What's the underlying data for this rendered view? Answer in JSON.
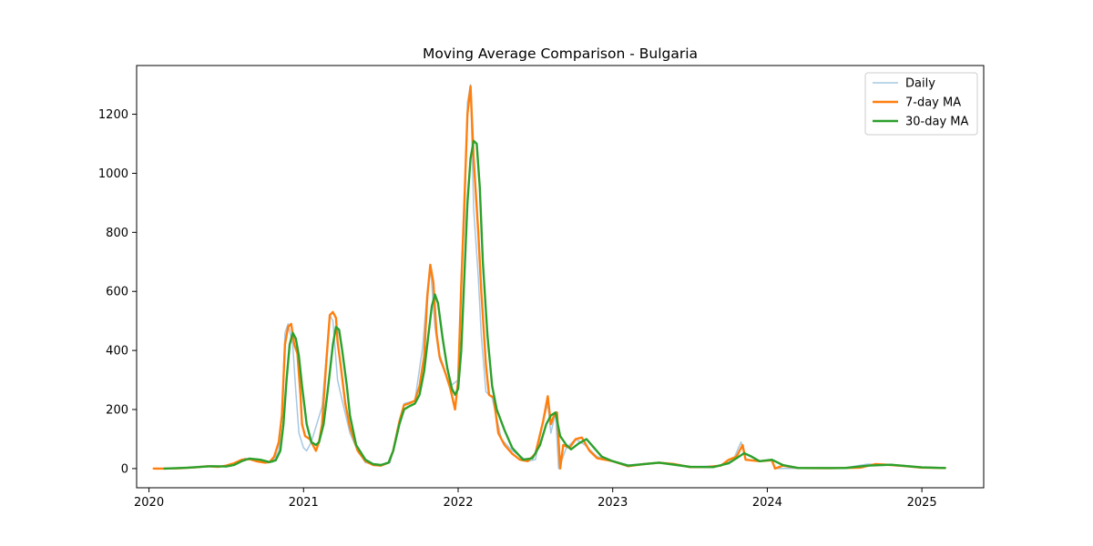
{
  "chart_data": {
    "type": "line",
    "title": "Moving Average Comparison - Bulgaria",
    "xlabel": "",
    "ylabel": "",
    "xlim": [
      2019.92,
      2025.4
    ],
    "ylim": [
      -65,
      1365
    ],
    "x_ticks": [
      2020,
      2021,
      2022,
      2023,
      2024,
      2025
    ],
    "y_ticks": [
      0,
      200,
      400,
      600,
      800,
      1000,
      1200
    ],
    "grid": false,
    "legend_placement": "top-right",
    "series": [
      {
        "name": "Daily",
        "color": "#a6c8e3",
        "style": "thin",
        "points": [
          [
            2020.05,
            0
          ],
          [
            2020.25,
            2
          ],
          [
            2020.4,
            8
          ],
          [
            2020.5,
            6
          ],
          [
            2020.55,
            15
          ],
          [
            2020.62,
            35
          ],
          [
            2020.7,
            25
          ],
          [
            2020.8,
            22
          ],
          [
            2020.84,
            60
          ],
          [
            2020.86,
            180
          ],
          [
            2020.87,
            320
          ],
          [
            2020.88,
            460
          ],
          [
            2020.9,
            490
          ],
          [
            2020.93,
            420
          ],
          [
            2020.95,
            260
          ],
          [
            2020.97,
            120
          ],
          [
            2021.0,
            70
          ],
          [
            2021.02,
            60
          ],
          [
            2021.05,
            90
          ],
          [
            2021.12,
            210
          ],
          [
            2021.17,
            520
          ],
          [
            2021.19,
            500
          ],
          [
            2021.22,
            300
          ],
          [
            2021.25,
            230
          ],
          [
            2021.3,
            120
          ],
          [
            2021.35,
            60
          ],
          [
            2021.4,
            20
          ],
          [
            2021.5,
            12
          ],
          [
            2021.56,
            20
          ],
          [
            2021.62,
            150
          ],
          [
            2021.65,
            220
          ],
          [
            2021.72,
            230
          ],
          [
            2021.77,
            410
          ],
          [
            2021.8,
            600
          ],
          [
            2021.82,
            690
          ],
          [
            2021.85,
            480
          ],
          [
            2021.88,
            370
          ],
          [
            2021.95,
            280
          ],
          [
            2022.0,
            300
          ],
          [
            2022.02,
            650
          ],
          [
            2022.04,
            830
          ],
          [
            2022.06,
            1240
          ],
          [
            2022.08,
            1300
          ],
          [
            2022.1,
            880
          ],
          [
            2022.13,
            650
          ],
          [
            2022.15,
            450
          ],
          [
            2022.18,
            260
          ],
          [
            2022.22,
            240
          ],
          [
            2022.28,
            100
          ],
          [
            2022.35,
            60
          ],
          [
            2022.45,
            25
          ],
          [
            2022.5,
            30
          ],
          [
            2022.55,
            160
          ],
          [
            2022.58,
            220
          ],
          [
            2022.6,
            120
          ],
          [
            2022.63,
            190
          ],
          [
            2022.65,
            0
          ],
          [
            2022.7,
            70
          ],
          [
            2022.76,
            100
          ],
          [
            2022.82,
            80
          ],
          [
            2022.9,
            40
          ],
          [
            2023.0,
            25
          ],
          [
            2023.1,
            12
          ],
          [
            2023.3,
            20
          ],
          [
            2023.5,
            6
          ],
          [
            2023.7,
            10
          ],
          [
            2023.78,
            30
          ],
          [
            2023.83,
            90
          ],
          [
            2023.86,
            30
          ],
          [
            2023.95,
            25
          ],
          [
            2024.03,
            30
          ],
          [
            2024.05,
            0
          ],
          [
            2024.2,
            1
          ],
          [
            2024.5,
            2
          ],
          [
            2024.65,
            15
          ],
          [
            2024.8,
            12
          ],
          [
            2025.0,
            4
          ],
          [
            2025.15,
            2
          ]
        ]
      },
      {
        "name": "7-day MA",
        "color": "#ff7f0e",
        "style": "medium",
        "points": [
          [
            2020.03,
            0
          ],
          [
            2020.1,
            0
          ],
          [
            2020.2,
            1
          ],
          [
            2020.3,
            4
          ],
          [
            2020.38,
            8
          ],
          [
            2020.45,
            6
          ],
          [
            2020.5,
            10
          ],
          [
            2020.55,
            18
          ],
          [
            2020.6,
            30
          ],
          [
            2020.65,
            32
          ],
          [
            2020.7,
            24
          ],
          [
            2020.75,
            20
          ],
          [
            2020.78,
            22
          ],
          [
            2020.81,
            40
          ],
          [
            2020.84,
            90
          ],
          [
            2020.86,
            180
          ],
          [
            2020.87,
            300
          ],
          [
            2020.88,
            420
          ],
          [
            2020.9,
            480
          ],
          [
            2020.92,
            490
          ],
          [
            2020.94,
            420
          ],
          [
            2020.96,
            390
          ],
          [
            2020.98,
            250
          ],
          [
            2020.99,
            150
          ],
          [
            2021.01,
            110
          ],
          [
            2021.04,
            100
          ],
          [
            2021.06,
            80
          ],
          [
            2021.08,
            60
          ],
          [
            2021.1,
            90
          ],
          [
            2021.12,
            150
          ],
          [
            2021.15,
            380
          ],
          [
            2021.17,
            520
          ],
          [
            2021.19,
            530
          ],
          [
            2021.21,
            510
          ],
          [
            2021.22,
            430
          ],
          [
            2021.24,
            350
          ],
          [
            2021.27,
            220
          ],
          [
            2021.3,
            140
          ],
          [
            2021.35,
            60
          ],
          [
            2021.4,
            25
          ],
          [
            2021.45,
            12
          ],
          [
            2021.5,
            10
          ],
          [
            2021.55,
            20
          ],
          [
            2021.58,
            60
          ],
          [
            2021.62,
            160
          ],
          [
            2021.65,
            215
          ],
          [
            2021.68,
            220
          ],
          [
            2021.72,
            230
          ],
          [
            2021.75,
            280
          ],
          [
            2021.78,
            380
          ],
          [
            2021.8,
            580
          ],
          [
            2021.82,
            690
          ],
          [
            2021.84,
            630
          ],
          [
            2021.86,
            460
          ],
          [
            2021.88,
            380
          ],
          [
            2021.92,
            320
          ],
          [
            2021.95,
            270
          ],
          [
            2021.98,
            200
          ],
          [
            2022.0,
            300
          ],
          [
            2022.02,
            620
          ],
          [
            2022.04,
            900
          ],
          [
            2022.06,
            1200
          ],
          [
            2022.08,
            1295
          ],
          [
            2022.1,
            1050
          ],
          [
            2022.13,
            800
          ],
          [
            2022.15,
            600
          ],
          [
            2022.18,
            350
          ],
          [
            2022.2,
            250
          ],
          [
            2022.23,
            240
          ],
          [
            2022.26,
            120
          ],
          [
            2022.3,
            80
          ],
          [
            2022.35,
            50
          ],
          [
            2022.4,
            30
          ],
          [
            2022.45,
            25
          ],
          [
            2022.5,
            50
          ],
          [
            2022.55,
            160
          ],
          [
            2022.58,
            245
          ],
          [
            2022.6,
            150
          ],
          [
            2022.62,
            180
          ],
          [
            2022.64,
            190
          ],
          [
            2022.66,
            0
          ],
          [
            2022.68,
            80
          ],
          [
            2022.72,
            70
          ],
          [
            2022.76,
            100
          ],
          [
            2022.8,
            105
          ],
          [
            2022.85,
            60
          ],
          [
            2022.9,
            35
          ],
          [
            2023.0,
            25
          ],
          [
            2023.1,
            8
          ],
          [
            2023.2,
            15
          ],
          [
            2023.3,
            20
          ],
          [
            2023.4,
            15
          ],
          [
            2023.5,
            5
          ],
          [
            2023.6,
            5
          ],
          [
            2023.7,
            10
          ],
          [
            2023.75,
            30
          ],
          [
            2023.8,
            40
          ],
          [
            2023.84,
            80
          ],
          [
            2023.86,
            30
          ],
          [
            2023.95,
            25
          ],
          [
            2024.03,
            28
          ],
          [
            2024.05,
            0
          ],
          [
            2024.1,
            10
          ],
          [
            2024.2,
            2
          ],
          [
            2024.4,
            1
          ],
          [
            2024.6,
            3
          ],
          [
            2024.7,
            15
          ],
          [
            2024.8,
            12
          ],
          [
            2024.9,
            8
          ],
          [
            2025.0,
            3
          ],
          [
            2025.15,
            2
          ]
        ]
      },
      {
        "name": "30-day MA",
        "color": "#2ca02c",
        "style": "medium",
        "points": [
          [
            2020.1,
            0
          ],
          [
            2020.25,
            3
          ],
          [
            2020.4,
            8
          ],
          [
            2020.5,
            7
          ],
          [
            2020.55,
            12
          ],
          [
            2020.6,
            25
          ],
          [
            2020.65,
            34
          ],
          [
            2020.72,
            30
          ],
          [
            2020.78,
            22
          ],
          [
            2020.82,
            28
          ],
          [
            2020.85,
            60
          ],
          [
            2020.87,
            150
          ],
          [
            2020.89,
            300
          ],
          [
            2020.91,
            420
          ],
          [
            2020.93,
            460
          ],
          [
            2020.95,
            440
          ],
          [
            2020.97,
            380
          ],
          [
            2020.99,
            280
          ],
          [
            2021.02,
            150
          ],
          [
            2021.05,
            90
          ],
          [
            2021.08,
            80
          ],
          [
            2021.1,
            90
          ],
          [
            2021.13,
            150
          ],
          [
            2021.16,
            280
          ],
          [
            2021.19,
            420
          ],
          [
            2021.21,
            480
          ],
          [
            2021.23,
            470
          ],
          [
            2021.25,
            400
          ],
          [
            2021.28,
            280
          ],
          [
            2021.3,
            180
          ],
          [
            2021.34,
            80
          ],
          [
            2021.4,
            30
          ],
          [
            2021.45,
            15
          ],
          [
            2021.5,
            12
          ],
          [
            2021.55,
            20
          ],
          [
            2021.58,
            60
          ],
          [
            2021.62,
            150
          ],
          [
            2021.65,
            200
          ],
          [
            2021.68,
            210
          ],
          [
            2021.72,
            220
          ],
          [
            2021.75,
            250
          ],
          [
            2021.78,
            330
          ],
          [
            2021.8,
            420
          ],
          [
            2021.83,
            550
          ],
          [
            2021.85,
            590
          ],
          [
            2021.87,
            560
          ],
          [
            2021.9,
            440
          ],
          [
            2021.93,
            340
          ],
          [
            2021.96,
            270
          ],
          [
            2021.98,
            250
          ],
          [
            2022.0,
            270
          ],
          [
            2022.02,
            400
          ],
          [
            2022.04,
            650
          ],
          [
            2022.06,
            900
          ],
          [
            2022.08,
            1050
          ],
          [
            2022.1,
            1110
          ],
          [
            2022.12,
            1100
          ],
          [
            2022.14,
            950
          ],
          [
            2022.16,
            700
          ],
          [
            2022.19,
            450
          ],
          [
            2022.22,
            280
          ],
          [
            2022.25,
            200
          ],
          [
            2022.3,
            130
          ],
          [
            2022.35,
            70
          ],
          [
            2022.42,
            30
          ],
          [
            2022.48,
            35
          ],
          [
            2022.53,
            80
          ],
          [
            2022.57,
            150
          ],
          [
            2022.6,
            180
          ],
          [
            2022.63,
            190
          ],
          [
            2022.66,
            110
          ],
          [
            2022.7,
            80
          ],
          [
            2022.73,
            65
          ],
          [
            2022.78,
            85
          ],
          [
            2022.83,
            100
          ],
          [
            2022.88,
            70
          ],
          [
            2022.93,
            40
          ],
          [
            2023.0,
            25
          ],
          [
            2023.1,
            10
          ],
          [
            2023.3,
            20
          ],
          [
            2023.5,
            6
          ],
          [
            2023.65,
            5
          ],
          [
            2023.75,
            18
          ],
          [
            2023.8,
            35
          ],
          [
            2023.85,
            52
          ],
          [
            2023.9,
            40
          ],
          [
            2023.95,
            25
          ],
          [
            2024.03,
            30
          ],
          [
            2024.1,
            12
          ],
          [
            2024.2,
            2
          ],
          [
            2024.5,
            2
          ],
          [
            2024.65,
            10
          ],
          [
            2024.8,
            13
          ],
          [
            2025.0,
            4
          ],
          [
            2025.15,
            2
          ]
        ]
      }
    ]
  }
}
